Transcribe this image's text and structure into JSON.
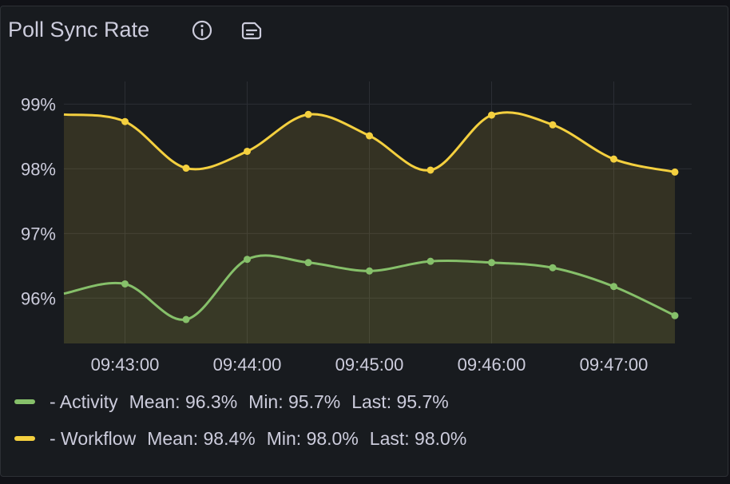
{
  "panel": {
    "title": "Poll Sync Rate",
    "icons": [
      "info-icon",
      "panel-note-icon"
    ]
  },
  "colors": {
    "background": "#181b1f",
    "grid": "#2b2e34",
    "text": "#ccccdc",
    "fill": "#2f2f24",
    "activity": "#86c06a",
    "workflow": "#f4d03f"
  },
  "legend": {
    "items": [
      {
        "label": "- Activity",
        "mean": "Mean: 96.3%",
        "min": "Min: 95.7%",
        "last": "Last: 95.7%"
      },
      {
        "label": "- Workflow",
        "mean": "Mean: 98.4%",
        "min": "Min: 98.0%",
        "last": "Last: 98.0%"
      }
    ]
  },
  "chart_data": {
    "type": "area",
    "y_ticks": [
      "96%",
      "97%",
      "98%",
      "99%"
    ],
    "x_ticks": [
      "09:43:00",
      "09:44:00",
      "09:45:00",
      "09:46:00",
      "09:47:00"
    ],
    "ylim": [
      95.3,
      99.35
    ],
    "y_unit": "%",
    "grid": true,
    "legend_position": "bottom",
    "x": [
      "09:42:30",
      "09:43:00",
      "09:43:30",
      "09:44:00",
      "09:44:30",
      "09:45:00",
      "09:45:30",
      "09:46:00",
      "09:46:30",
      "09:47:00",
      "09:47:30"
    ],
    "series": [
      {
        "name": "Activity",
        "color": "#86c06a",
        "values": [
          96.07,
          96.22,
          95.67,
          96.6,
          96.55,
          96.42,
          96.57,
          96.55,
          96.47,
          96.18,
          95.73
        ],
        "marker_from_index": 1
      },
      {
        "name": "Workflow",
        "color": "#f4d03f",
        "values": [
          98.84,
          98.73,
          98.01,
          98.27,
          98.84,
          98.51,
          97.98,
          98.83,
          98.68,
          98.15,
          97.95
        ],
        "marker_from_index": 1
      }
    ]
  }
}
